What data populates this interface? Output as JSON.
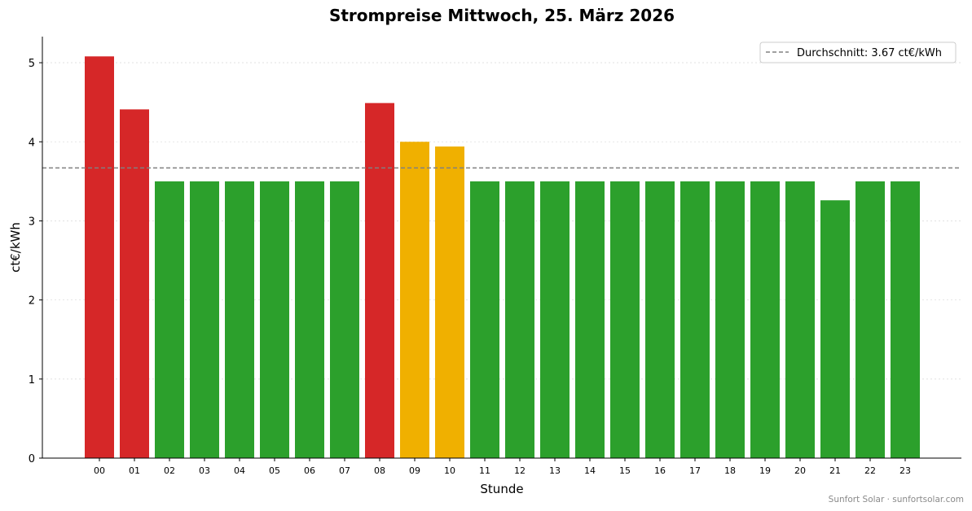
{
  "chart_data": {
    "type": "bar",
    "title": "Strompreise Mittwoch, 25. März 2026",
    "xlabel": "Stunde",
    "ylabel": "ct€/kWh",
    "ylim": [
      0,
      5.33
    ],
    "yticks": [
      0,
      1,
      2,
      3,
      4,
      5
    ],
    "grid": "horizontal-dotted",
    "categories": [
      "00",
      "01",
      "02",
      "03",
      "04",
      "05",
      "06",
      "07",
      "08",
      "09",
      "10",
      "11",
      "12",
      "13",
      "14",
      "15",
      "16",
      "17",
      "18",
      "19",
      "20",
      "21",
      "22",
      "23"
    ],
    "values": [
      5.08,
      4.41,
      3.5,
      3.5,
      3.5,
      3.5,
      3.5,
      3.5,
      4.49,
      4.0,
      3.94,
      3.5,
      3.5,
      3.5,
      3.5,
      3.5,
      3.5,
      3.5,
      3.5,
      3.5,
      3.5,
      3.26,
      3.5,
      3.5
    ],
    "bar_colors": [
      "#d62728",
      "#d62728",
      "#2ca02c",
      "#2ca02c",
      "#2ca02c",
      "#2ca02c",
      "#2ca02c",
      "#2ca02c",
      "#d62728",
      "#f0b000",
      "#f0b000",
      "#2ca02c",
      "#2ca02c",
      "#2ca02c",
      "#2ca02c",
      "#2ca02c",
      "#2ca02c",
      "#2ca02c",
      "#2ca02c",
      "#2ca02c",
      "#2ca02c",
      "#2ca02c",
      "#2ca02c",
      "#2ca02c"
    ],
    "average": {
      "value": 3.67,
      "label": "Durchschnitt: 3.67 ct€/kWh",
      "color": "#808080",
      "style": "dashed"
    },
    "legend_position": "top-right"
  },
  "footer": {
    "watermark": "Sunfort Solar · sunfortsolar.com"
  }
}
